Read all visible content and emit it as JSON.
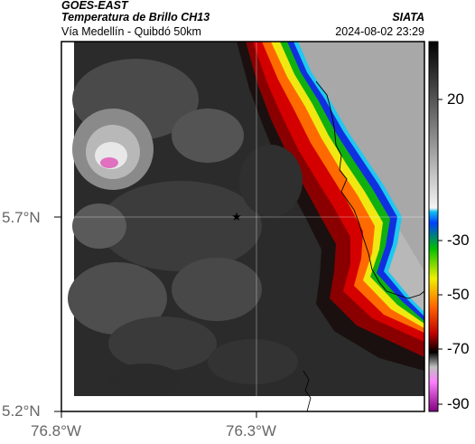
{
  "header": {
    "satellite": "GOES-EAST",
    "product": "Temperatura de Brillo CH13",
    "region": "Vía Medellín - Quibdó 50km",
    "organization": "SIATA",
    "datetime": "2024-08-02 23:29"
  },
  "axes": {
    "lat_labels": [
      "5.7°N",
      "5.2°N"
    ],
    "lon_labels": [
      "76.8°W",
      "76.3°W"
    ]
  },
  "colorbar": {
    "ticks": [
      "20",
      "-30",
      "-50",
      "-70",
      "-90"
    ]
  },
  "colors": {
    "warm_land": "#b8b8b8",
    "cloud_dark": "#2a2a2a",
    "cold_red": "#c80000",
    "cold_top": "#e070c0",
    "coastline": "#000000"
  },
  "marker": {
    "symbol": "star",
    "label": ""
  }
}
